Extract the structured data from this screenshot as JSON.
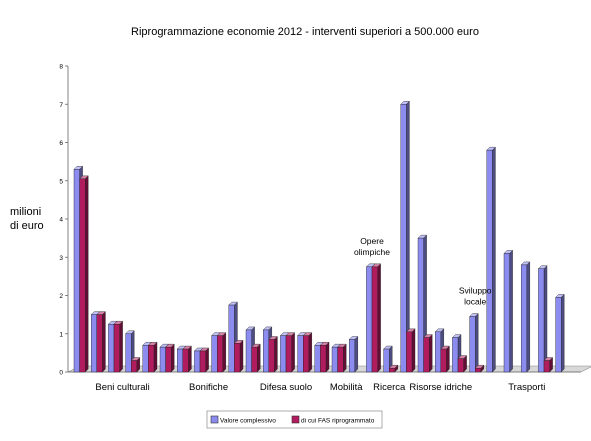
{
  "chart_data": {
    "type": "bar",
    "title": "Riprogrammazione economie 2012 - interventi superiori a 500.000 euro",
    "ylabel_lines": [
      "milioni",
      "di euro"
    ],
    "ylim": [
      0,
      8
    ],
    "yticks": [
      "0",
      "1",
      "2",
      "3",
      "4",
      "5",
      "6",
      "7",
      "8"
    ],
    "grid": false,
    "legend_position": "bottom",
    "series": [
      {
        "name": "Valore complessivo",
        "color": "#8c8cf0",
        "values": [
          5.3,
          1.5,
          1.25,
          1.0,
          0.7,
          0.65,
          0.6,
          0.55,
          0.95,
          1.75,
          1.1,
          1.1,
          0.95,
          0.95,
          0.7,
          0.65,
          0.85,
          2.75,
          0.6,
          7.0,
          3.5,
          1.05,
          0.9,
          1.45,
          5.8,
          3.1,
          2.8,
          2.7,
          1.95
        ]
      },
      {
        "name": "di cui FAS riprogrammato",
        "color": "#b01c5e",
        "values": [
          5.05,
          1.5,
          1.25,
          0.3,
          0.7,
          0.65,
          0.6,
          0.55,
          0.95,
          0.75,
          0.65,
          0.85,
          0.95,
          0.95,
          0.7,
          0.65,
          null,
          2.75,
          0.1,
          1.05,
          0.9,
          0.6,
          0.35,
          0.1,
          null,
          null,
          null,
          0.3,
          null
        ]
      }
    ],
    "group_labels": [
      {
        "label": "Beni culturali",
        "start": 0,
        "end": 5
      },
      {
        "label": "Bonifiche",
        "start": 6,
        "end": 9
      },
      {
        "label": "Difesa suolo",
        "start": 10,
        "end": 14
      },
      {
        "label": "Mobilità",
        "start": 15,
        "end": 16
      },
      {
        "label": "Ricerca",
        "start": 18,
        "end": 18
      },
      {
        "label": "Risorse idriche",
        "start": 19,
        "end": 23
      },
      {
        "label": "Trasporti",
        "start": 24,
        "end": 28
      }
    ],
    "annotations": [
      {
        "lines": [
          "Opere",
          "olimpiche"
        ],
        "index": 17
      },
      {
        "lines": [
          "Sviluppo",
          "locale"
        ],
        "index": 23
      }
    ]
  }
}
